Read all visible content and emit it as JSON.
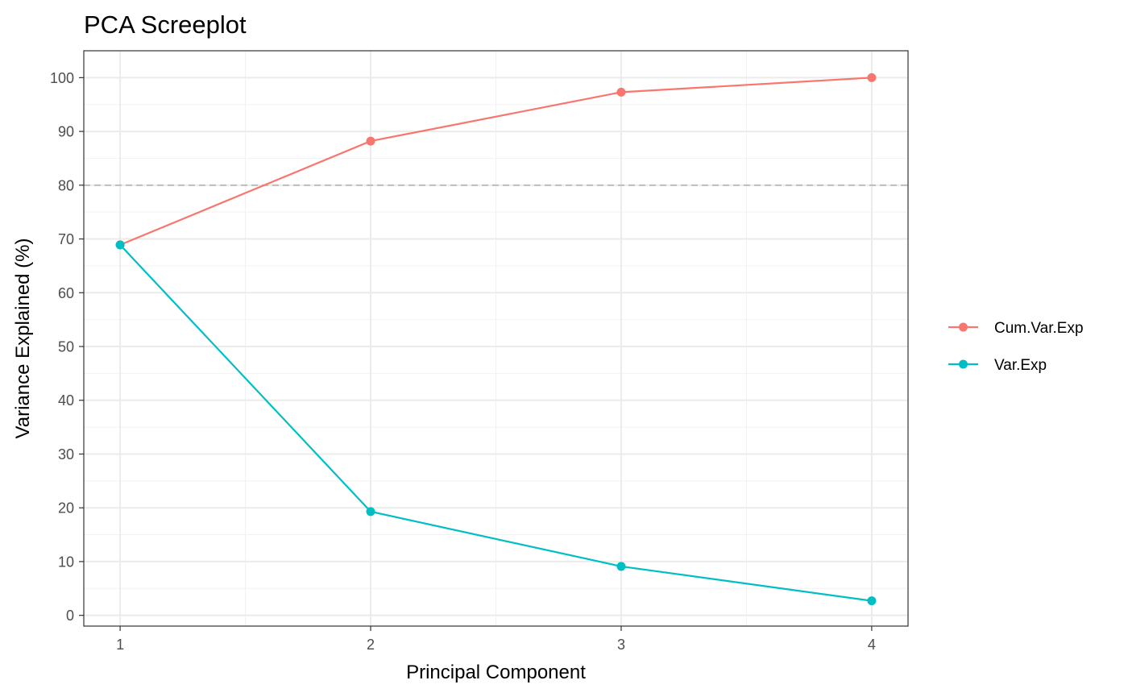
{
  "chart_data": {
    "type": "line",
    "title": "PCA Screeplot",
    "xlabel": "Principal Component",
    "ylabel": "Variance Explained (%)",
    "x": [
      1,
      2,
      3,
      4
    ],
    "xticks": [
      "1",
      "2",
      "3",
      "4"
    ],
    "xlim": [
      0.855,
      4.145
    ],
    "ylim": [
      -2,
      105
    ],
    "yticks": [
      "0",
      "10",
      "20",
      "30",
      "40",
      "50",
      "60",
      "70",
      "80",
      "90",
      "100"
    ],
    "grid": true,
    "reference_line": {
      "y": 80,
      "style": "dashed",
      "color": "#bebebe"
    },
    "series": [
      {
        "name": "Cum.Var.Exp",
        "color": "#F8766D",
        "values": [
          68.9,
          88.2,
          97.3,
          100.0
        ]
      },
      {
        "name": "Var.Exp",
        "color": "#00BFC4",
        "values": [
          68.9,
          19.3,
          9.1,
          2.7
        ]
      }
    ],
    "legend": {
      "position": "right"
    }
  }
}
